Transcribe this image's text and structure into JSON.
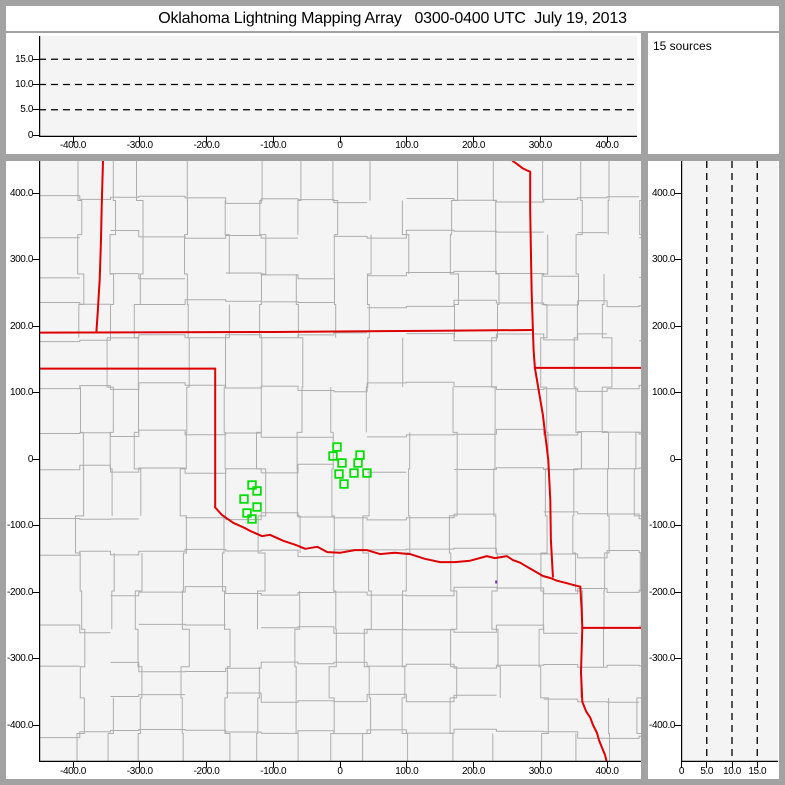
{
  "title": "Oklahoma Lightning Mapping Array   0300-0400 UTC  July 19, 2013",
  "annotation": {
    "sources_count_label": "15 sources"
  },
  "colors": {
    "frame": "#a2a2a2",
    "panel_bg": "#ffffff",
    "plot_bg": "#f4f4f4",
    "county_line": "#adadad",
    "state_border": "#dd0000",
    "source_marker": "#00dd00",
    "dashed_gridline": "#000000",
    "axis": "#000000",
    "station_dot": "#7b2fbe"
  },
  "axes": {
    "ew": {
      "tick_values": [
        -400,
        -300,
        -200,
        -100,
        0,
        100,
        200,
        300,
        400
      ],
      "tick_labels": [
        "-400.0",
        "-300.0",
        "-200.0",
        "-100.0",
        "0",
        "100.0",
        "200.0",
        "300.0",
        "400.0"
      ]
    },
    "ns": {
      "tick_values": [
        400,
        300,
        200,
        100,
        0,
        -100,
        -200,
        -300,
        -400
      ],
      "tick_labels": [
        "400.0",
        "300.0",
        "200.0",
        "100.0",
        "0",
        "-100.0",
        "-200.0",
        "-300.0",
        "-400.0"
      ]
    },
    "alt_top": {
      "tick_values": [
        15,
        10,
        5,
        0
      ],
      "tick_labels": [
        "15.0",
        "10.0",
        "5.0",
        "0"
      ],
      "gridlines": [
        5,
        10,
        15
      ]
    },
    "alt_right": {
      "tick_values": [
        0,
        5,
        10,
        15
      ],
      "tick_labels": [
        "0",
        "5.0",
        "10.0",
        "15.0"
      ],
      "gridlines": [
        5,
        10,
        15
      ]
    }
  },
  "sources_km": [
    [
      -4.5,
      18.0
    ],
    [
      -10.5,
      4.5
    ],
    [
      30.0,
      6.0
    ],
    [
      3.0,
      -6.0
    ],
    [
      27.0,
      -6.0
    ],
    [
      -1.5,
      -22.6
    ],
    [
      21.0,
      -21.1
    ],
    [
      6.0,
      -37.6
    ],
    [
      40.4,
      -21.1
    ],
    [
      -131.8,
      -39.1
    ],
    [
      -124.3,
      -48.1
    ],
    [
      -143.8,
      -60.2
    ],
    [
      -124.3,
      -72.2
    ],
    [
      -139.3,
      -81.2
    ],
    [
      -131.8,
      -90.2
    ]
  ],
  "map": {
    "station_dot": {
      "x_km": 234,
      "y_km": -185
    },
    "state_borders": [
      {
        "name": "co-ks-border",
        "points": [
          [
            -355,
            448
          ],
          [
            -357,
            380
          ],
          [
            -358,
            330
          ],
          [
            -360,
            270
          ],
          [
            -363,
            220
          ],
          [
            -365,
            191
          ]
        ]
      },
      {
        "name": "ks-ok-north-border",
        "points": [
          [
            -451,
            190
          ],
          [
            -100,
            191
          ],
          [
            150,
            193
          ],
          [
            289,
            194
          ]
        ]
      },
      {
        "name": "ok-panhandle-south-border",
        "points": [
          [
            -451,
            136
          ],
          [
            -187,
            136
          ]
        ]
      },
      {
        "name": "tx-ok-100w-border",
        "points": [
          [
            -187,
            136
          ],
          [
            -187,
            -73
          ]
        ]
      },
      {
        "name": "red-river-tx-ok-border",
        "points": [
          [
            -187,
            -73
          ],
          [
            -177,
            -84
          ],
          [
            -160,
            -96
          ],
          [
            -142,
            -104
          ],
          [
            -135,
            -108
          ],
          [
            -117,
            -116
          ],
          [
            -105,
            -114
          ],
          [
            -85,
            -123
          ],
          [
            -67,
            -129
          ],
          [
            -52,
            -135
          ],
          [
            -34,
            -132
          ],
          [
            -19,
            -140
          ],
          [
            0,
            -141
          ],
          [
            22,
            -137
          ],
          [
            40,
            -137
          ],
          [
            60,
            -143
          ],
          [
            82,
            -141
          ],
          [
            105,
            -143
          ],
          [
            127,
            -150
          ],
          [
            150,
            -155
          ],
          [
            172,
            -155
          ],
          [
            195,
            -153
          ],
          [
            220,
            -146
          ],
          [
            232,
            -149
          ],
          [
            250,
            -146
          ],
          [
            259,
            -152
          ],
          [
            270,
            -156
          ],
          [
            280,
            -162
          ],
          [
            289,
            -167
          ],
          [
            304,
            -176
          ],
          [
            315,
            -179
          ],
          [
            325,
            -183
          ],
          [
            337,
            -186
          ],
          [
            348,
            -189
          ],
          [
            360,
            -192
          ]
        ]
      },
      {
        "name": "tx-ar-border",
        "points": [
          [
            360,
            -192
          ],
          [
            362,
            -225
          ],
          [
            363,
            -254
          ]
        ]
      },
      {
        "name": "ar-la-border",
        "points": [
          [
            363,
            -254
          ],
          [
            451,
            -254
          ]
        ]
      },
      {
        "name": "tx-la-border",
        "points": [
          [
            363,
            -254
          ],
          [
            361,
            -320
          ],
          [
            363,
            -365
          ],
          [
            369,
            -380
          ],
          [
            375,
            -389
          ],
          [
            379,
            -400
          ],
          [
            385,
            -412
          ],
          [
            388,
            -423
          ],
          [
            392,
            -433
          ],
          [
            397,
            -445
          ],
          [
            400,
            -457
          ]
        ]
      },
      {
        "name": "mo-ks-border",
        "points": [
          [
            259,
            448
          ],
          [
            266,
            443
          ],
          [
            274,
            437
          ],
          [
            280,
            434
          ],
          [
            285,
            432
          ],
          [
            285,
            374
          ],
          [
            286,
            314
          ],
          [
            287,
            254
          ],
          [
            289,
            194
          ],
          [
            290,
            164
          ],
          [
            292,
            137
          ]
        ]
      },
      {
        "name": "mo-ar-border",
        "points": [
          [
            292,
            137
          ],
          [
            451,
            137
          ]
        ]
      },
      {
        "name": "ok-ar-border",
        "points": [
          [
            292,
            137
          ],
          [
            304,
            66
          ],
          [
            312,
            -2
          ],
          [
            315,
            -62
          ],
          [
            316,
            -122
          ],
          [
            319,
            -177
          ]
        ]
      }
    ]
  },
  "chart_data": [
    {
      "type": "scatter",
      "panel": "altitude-vs-east-west",
      "title": "",
      "xlabel": "",
      "ylabel": "",
      "xlim": [
        -451,
        451
      ],
      "ylim": [
        0,
        20
      ],
      "xticks": [
        -400,
        -300,
        -200,
        -100,
        0,
        100,
        200,
        300,
        400
      ],
      "yticks": [
        0,
        5,
        10,
        15
      ],
      "gridlines_y": [
        5,
        10,
        15
      ],
      "grid_style": "dashed",
      "points": []
    },
    {
      "type": "scatter",
      "panel": "plan-view-map",
      "title": "",
      "xlabel": "",
      "ylabel": "",
      "xlim": [
        -451,
        451
      ],
      "ylim": [
        -455,
        448
      ],
      "xticks": [
        -400,
        -300,
        -200,
        -100,
        0,
        100,
        200,
        300,
        400
      ],
      "yticks": [
        400,
        300,
        200,
        100,
        0,
        -100,
        -200,
        -300,
        -400
      ],
      "annotation": "15 sources",
      "marker": "open-green-square",
      "points": [
        [
          -4.5,
          18.0
        ],
        [
          -10.5,
          4.5
        ],
        [
          30.0,
          6.0
        ],
        [
          3.0,
          -6.0
        ],
        [
          27.0,
          -6.0
        ],
        [
          -1.5,
          -22.6
        ],
        [
          21.0,
          -21.1
        ],
        [
          6.0,
          -37.6
        ],
        [
          40.4,
          -21.1
        ],
        [
          -131.8,
          -39.1
        ],
        [
          -124.3,
          -48.1
        ],
        [
          -143.8,
          -60.2
        ],
        [
          -124.3,
          -72.2
        ],
        [
          -139.3,
          -81.2
        ],
        [
          -131.8,
          -90.2
        ]
      ]
    },
    {
      "type": "scatter",
      "panel": "altitude-vs-north-south",
      "title": "",
      "xlabel": "",
      "ylabel": "",
      "xlim": [
        0,
        19
      ],
      "ylim": [
        -455,
        448
      ],
      "xticks": [
        0,
        5,
        10,
        15
      ],
      "yticks": [
        400,
        300,
        200,
        100,
        0,
        -100,
        -200,
        -300,
        -400
      ],
      "gridlines_x": [
        5,
        10,
        15
      ],
      "grid_style": "dashed",
      "points": []
    }
  ]
}
